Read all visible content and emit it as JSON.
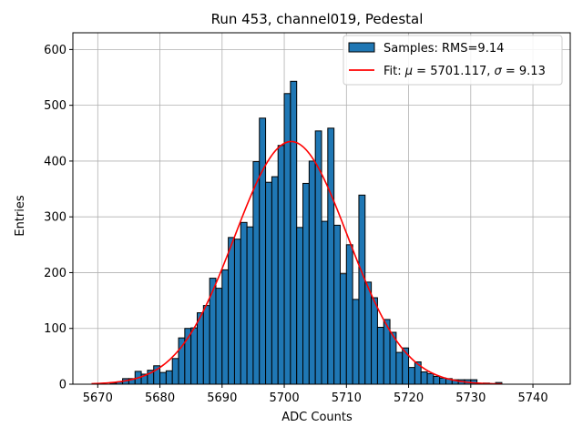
{
  "chart_data": {
    "type": "bar",
    "title": "Run 453, channel019, Pedestal",
    "xlabel": "ADC Counts",
    "ylabel": "Entries",
    "xlim": [
      5666,
      5746
    ],
    "ylim": [
      0,
      630
    ],
    "xticks": [
      5670,
      5680,
      5690,
      5700,
      5710,
      5720,
      5730,
      5740
    ],
    "yticks": [
      0,
      100,
      200,
      300,
      400,
      500,
      600
    ],
    "grid": true,
    "legend_position": "top-right",
    "bin_width": 1,
    "histogram": {
      "name": "Samples: RMS=9.14",
      "color": "#1f77b4",
      "edge_color": "#000000",
      "bin_starts": [
        5672,
        5673,
        5674,
        5675,
        5676,
        5677,
        5678,
        5679,
        5680,
        5681,
        5682,
        5683,
        5684,
        5685,
        5686,
        5687,
        5688,
        5689,
        5690,
        5691,
        5692,
        5693,
        5694,
        5695,
        5696,
        5697,
        5698,
        5699,
        5700,
        5701,
        5702,
        5703,
        5704,
        5705,
        5706,
        5707,
        5708,
        5709,
        5710,
        5711,
        5712,
        5713,
        5714,
        5715,
        5716,
        5717,
        5718,
        5719,
        5720,
        5721,
        5722,
        5723,
        5724,
        5725,
        5726,
        5727,
        5728,
        5729,
        5730,
        5731,
        5732,
        5733,
        5734
      ],
      "counts": [
        2,
        4,
        10,
        10,
        23,
        18,
        25,
        33,
        21,
        24,
        46,
        83,
        100,
        101,
        128,
        141,
        190,
        172,
        205,
        263,
        260,
        290,
        282,
        399,
        477,
        362,
        372,
        428,
        521,
        543,
        281,
        360,
        400,
        454,
        292,
        459,
        285,
        198,
        250,
        152,
        339,
        183,
        155,
        102,
        116,
        93,
        57,
        65,
        30,
        40,
        22,
        19,
        14,
        11,
        10,
        8,
        8,
        8,
        8,
        1,
        2,
        1,
        3
      ]
    },
    "fit": {
      "name_prefix": "Fit: ",
      "name_mu": "μ",
      "name_mid": " = 5701.117, ",
      "name_sigma": "σ",
      "name_suffix": " = 9.13",
      "color": "#ff0000",
      "mu": 5701.117,
      "sigma": 9.13,
      "amplitude": 435,
      "x_range": [
        5669,
        5735
      ]
    }
  }
}
